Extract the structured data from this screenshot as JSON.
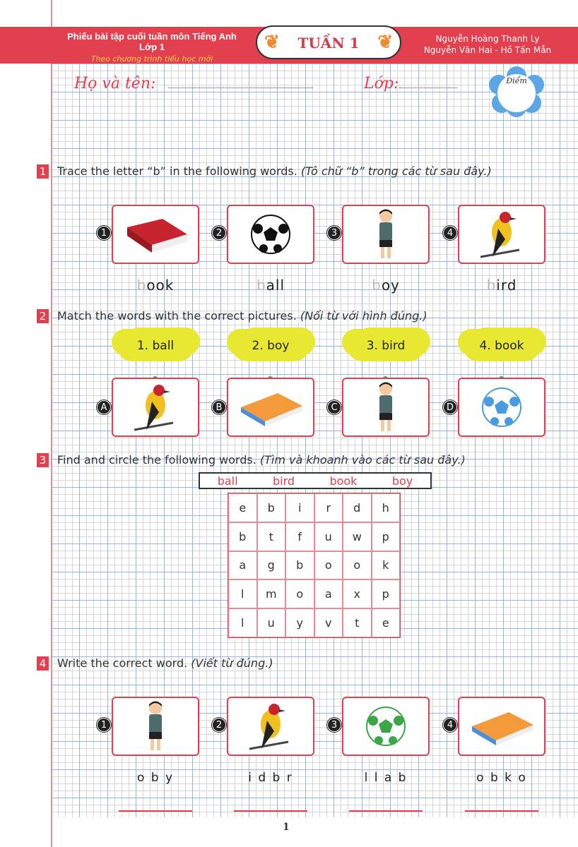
{
  "header": {
    "title": "Phiếu bài tập cuối tuần môn Tiếng Anh Lớp 1",
    "subtitle": "Theo chương trình tiểu học mới",
    "week": "TUẦN 1",
    "authors_line1": "Nguyễn Hoàng Thanh Ly",
    "authors_line2": "Nguyễn Văn Hai - Hồ Tấn Mẫn"
  },
  "student": {
    "name_label": "Họ và tên:",
    "class_label": "Lớp:",
    "score_label": "Điểm"
  },
  "sections": [
    {
      "num": "1",
      "text": "Trace the letter “b” in the following words.",
      "vi": "(Tô chữ “b” trong các từ sau đây.)",
      "items": [
        {
          "n": "1",
          "picture": "red-book",
          "trace": "b",
          "rest": "ook"
        },
        {
          "n": "2",
          "picture": "soccer-ball",
          "trace": "b",
          "rest": "all"
        },
        {
          "n": "3",
          "picture": "boy",
          "trace": "b",
          "rest": "oy"
        },
        {
          "n": "4",
          "picture": "bird",
          "trace": "b",
          "rest": "ird"
        }
      ]
    },
    {
      "num": "2",
      "text": "Match the words with the correct pictures.",
      "vi": "(Nối từ với hình đúng.)",
      "words": [
        "1. ball",
        "2. boy",
        "3. bird",
        "4. book"
      ],
      "pictures": [
        {
          "l": "A",
          "picture": "bird"
        },
        {
          "l": "B",
          "picture": "orange-book"
        },
        {
          "l": "C",
          "picture": "boy"
        },
        {
          "l": "D",
          "picture": "blue-ball"
        }
      ]
    },
    {
      "num": "3",
      "text": "Find and circle the following words.",
      "vi": "(Tìm và khoanh vào các từ sau đây.)",
      "words": [
        "ball",
        "bird",
        "book",
        "boy"
      ],
      "grid": [
        [
          "e",
          "b",
          "i",
          "r",
          "d",
          "h"
        ],
        [
          "b",
          "t",
          "f",
          "u",
          "w",
          "p"
        ],
        [
          "a",
          "g",
          "b",
          "o",
          "o",
          "k"
        ],
        [
          "l",
          "m",
          "o",
          "a",
          "x",
          "p"
        ],
        [
          "l",
          "u",
          "y",
          "v",
          "t",
          "e"
        ]
      ]
    },
    {
      "num": "4",
      "text": "Write the correct word.",
      "vi": "(Viết từ đúng.)",
      "items": [
        {
          "n": "1",
          "picture": "boy",
          "scrambled": "o b y"
        },
        {
          "n": "2",
          "picture": "bird",
          "scrambled": "i d b r"
        },
        {
          "n": "3",
          "picture": "green-ball",
          "scrambled": "l l a b"
        },
        {
          "n": "4",
          "picture": "orange-book",
          "scrambled": "o b k o"
        }
      ]
    }
  ],
  "page_number": "1",
  "colors": {
    "accent": "#e23f4f",
    "grid_blue": "#8fb8e8",
    "cloud": "#e8e832"
  }
}
